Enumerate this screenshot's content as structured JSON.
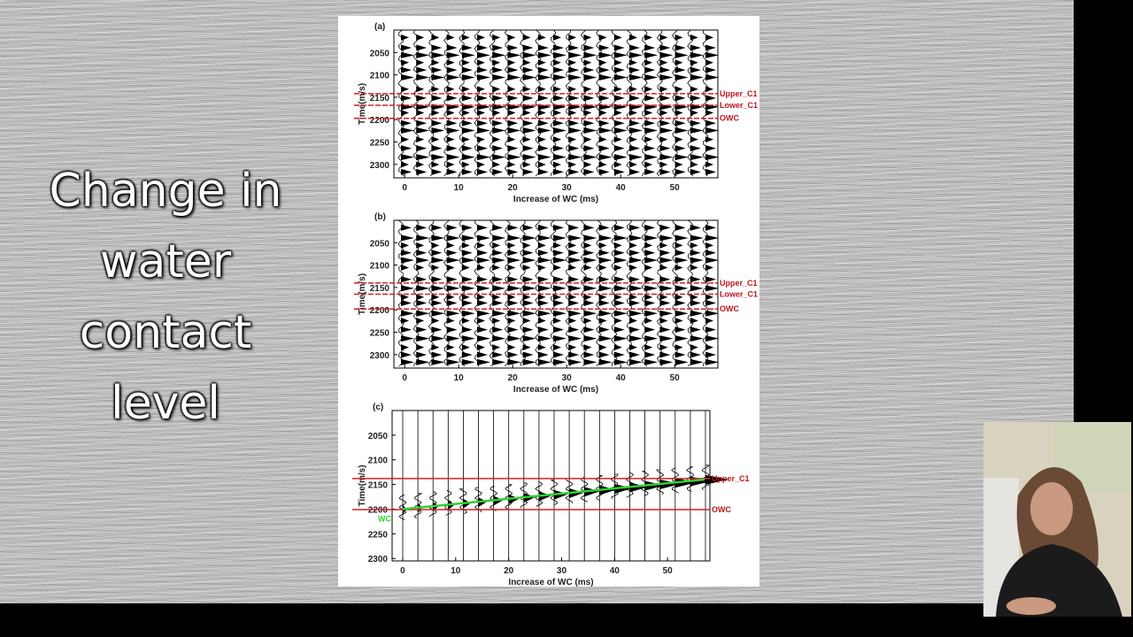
{
  "slide": {
    "title": "Change in water contact level"
  },
  "figure": {
    "panels": [
      {
        "label": "(a)",
        "ylabel": "Time(m/s)",
        "xlabel": "Increase of WC (ms)",
        "xlim": [
          -2,
          58
        ],
        "ylim": [
          2000,
          2330
        ],
        "xticks": [
          0,
          10,
          20,
          30,
          40,
          50
        ],
        "yticks": [
          2050,
          2100,
          2150,
          2200,
          2250,
          2300
        ],
        "horizons": [
          {
            "label": "Upper_C1",
            "time": 2142
          },
          {
            "label": "Lower_C1",
            "time": 2168
          },
          {
            "label": "OWC",
            "time": 2197
          }
        ]
      },
      {
        "label": "(b)",
        "ylabel": "Time(m/s)",
        "xlabel": "Increase of WC (ms)",
        "xlim": [
          -2,
          58
        ],
        "ylim": [
          2000,
          2330
        ],
        "xticks": [
          0,
          10,
          20,
          30,
          40,
          50
        ],
        "yticks": [
          2050,
          2100,
          2150,
          2200,
          2250,
          2300
        ],
        "horizons": [
          {
            "label": "Upper_C1",
            "time": 2140
          },
          {
            "label": "Lower_C1",
            "time": 2165
          },
          {
            "label": "OWC",
            "time": 2198
          }
        ]
      },
      {
        "label": "(c)",
        "ylabel": "Time(m/s)",
        "xlabel": "Increase of WC (ms)",
        "xlim": [
          -2,
          58
        ],
        "ylim": [
          2000,
          2305
        ],
        "xticks": [
          0,
          10,
          20,
          30,
          40,
          50
        ],
        "yticks": [
          2050,
          2100,
          2150,
          2200,
          2250,
          2300
        ],
        "horizons": [
          {
            "label": "Upper_C1",
            "time": 2138
          },
          {
            "label": "OWC",
            "time": 2201
          }
        ],
        "wc_line": {
          "label": "WC",
          "start": [
            0,
            2200
          ],
          "end": [
            57,
            2140
          ]
        }
      }
    ]
  }
}
